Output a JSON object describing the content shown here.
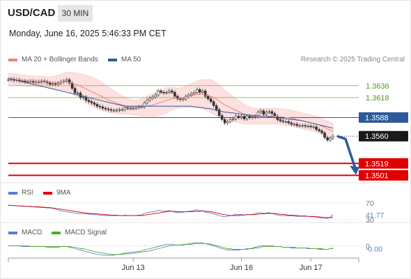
{
  "header": {
    "symbol": "USD/CAD",
    "timeframe": "30 MIN",
    "datetime": "Monday, June 16, 2025 5:46:33 PM CET"
  },
  "legend": {
    "ma20_label": "MA 20 + Bollinger Bands",
    "ma50_label": "MA 50",
    "credit": "Research © 2025 Trading Central",
    "rsi_label": "RSI",
    "rsi_ma_label": "9MA",
    "macd_label": "MACD",
    "macd_signal_label": "MACD Signal"
  },
  "colors": {
    "ma20": "#f08080",
    "ma50": "#2c5a9a",
    "candle": "#333333",
    "band": "#fde0e0",
    "green_level": "#8fc65a",
    "red_level": "#e00000",
    "blue_level": "#2c5a9a",
    "arrow": "#2c5a9a",
    "rsi": "#5b7bd5",
    "rsi_ma": "#e00000",
    "macd": "#5b7bd5",
    "macd_signal": "#4caf20"
  },
  "chart_data": [
    {
      "type": "line",
      "panel": "price",
      "price_range": [
        1.3492,
        1.3662
      ],
      "levels": [
        {
          "label": "1.3636",
          "value": 1.3636,
          "style": "green"
        },
        {
          "label": "1.3618",
          "value": 1.3618,
          "style": "green"
        },
        {
          "label": "1.3588",
          "value": 1.3588,
          "style": "blue"
        },
        {
          "label": "1.3560",
          "value": 1.356,
          "style": "current"
        },
        {
          "label": "1.3519",
          "value": 1.3519,
          "style": "red"
        },
        {
          "label": "1.3501",
          "value": 1.3501,
          "style": "red"
        }
      ],
      "x_ticks": [
        "Jun 13",
        "Jun 16",
        "Jun 17"
      ],
      "x_tick_index": [
        45,
        84,
        109
      ],
      "n_bars": 118,
      "close": [
        1.3645,
        1.3646,
        1.3644,
        1.3645,
        1.3643,
        1.3643,
        1.3642,
        1.3642,
        1.3643,
        1.3641,
        1.3642,
        1.3641,
        1.3643,
        1.3642,
        1.364,
        1.3638,
        1.3639,
        1.3638,
        1.364,
        1.3642,
        1.3643,
        1.3645,
        1.364,
        1.3632,
        1.3625,
        1.3625,
        1.3618,
        1.3619,
        1.3614,
        1.3612,
        1.361,
        1.3608,
        1.3605,
        1.3604,
        1.3602,
        1.3601,
        1.36,
        1.3599,
        1.3599,
        1.3599,
        1.36,
        1.36,
        1.3603,
        1.3602,
        1.3602,
        1.3602,
        1.3603,
        1.3604,
        1.3604,
        1.361,
        1.3614,
        1.3617,
        1.3619,
        1.3622,
        1.3628,
        1.3626,
        1.3625,
        1.3626,
        1.3628,
        1.3626,
        1.362,
        1.3616,
        1.3615,
        1.3616,
        1.362,
        1.3622,
        1.3624,
        1.3626,
        1.363,
        1.3626,
        1.3628,
        1.362,
        1.3616,
        1.3612,
        1.3606,
        1.36,
        1.3591,
        1.3585,
        1.358,
        1.3582,
        1.3585,
        1.3586,
        1.359,
        1.3588,
        1.359,
        1.3586,
        1.359,
        1.3588,
        1.3589,
        1.359,
        1.3596,
        1.3598,
        1.3593,
        1.3596,
        1.3597,
        1.3594,
        1.359,
        1.3585,
        1.3583,
        1.3582,
        1.3582,
        1.358,
        1.3578,
        1.3578,
        1.3576,
        1.3576,
        1.3576,
        1.3575,
        1.3575,
        1.3574,
        1.3574,
        1.357,
        1.3568,
        1.3565,
        1.3558,
        1.3554,
        1.3557,
        1.356
      ],
      "ma20": [
        1.3646,
        1.3646,
        1.3646,
        1.3645,
        1.3645,
        1.3644,
        1.3644,
        1.3643,
        1.3643,
        1.3643,
        1.3642,
        1.3642,
        1.3642,
        1.3642,
        1.3641,
        1.3641,
        1.3641,
        1.3641,
        1.3641,
        1.3642,
        1.3642,
        1.3642,
        1.3641,
        1.364,
        1.3638,
        1.3637,
        1.3635,
        1.3633,
        1.3631,
        1.3629,
        1.3627,
        1.3625,
        1.3623,
        1.3621,
        1.3619,
        1.3617,
        1.3615,
        1.3613,
        1.3612,
        1.361,
        1.3608,
        1.3607,
        1.3606,
        1.3605,
        1.3604,
        1.3603,
        1.3603,
        1.3603,
        1.3603,
        1.3604,
        1.3605,
        1.3606,
        1.3607,
        1.3608,
        1.361,
        1.3611,
        1.3612,
        1.3614,
        1.3615,
        1.3616,
        1.3617,
        1.3617,
        1.3618,
        1.3618,
        1.3619,
        1.362,
        1.3621,
        1.3622,
        1.3623,
        1.3623,
        1.3623,
        1.3622,
        1.3621,
        1.362,
        1.3618,
        1.3616,
        1.3613,
        1.361,
        1.3607,
        1.3605,
        1.3603,
        1.3601,
        1.3599,
        1.3597,
        1.3595,
        1.3593,
        1.3592,
        1.3591,
        1.359,
        1.359,
        1.359,
        1.359,
        1.359,
        1.359,
        1.359,
        1.359,
        1.359,
        1.359,
        1.3589,
        1.3589,
        1.3588,
        1.3588,
        1.3587,
        1.3586,
        1.3585,
        1.3584,
        1.3583,
        1.3582,
        1.3581,
        1.358,
        1.3579,
        1.3578,
        1.3577,
        1.3575,
        1.3573,
        1.3571,
        1.3569,
        1.3567
      ],
      "bb_width": [
        0.0008,
        0.0008,
        0.0008,
        0.0008,
        0.0008,
        0.0008,
        0.0008,
        0.0008,
        0.0008,
        0.0008,
        0.0008,
        0.0008,
        0.0008,
        0.0008,
        0.0008,
        0.0008,
        0.0009,
        0.001,
        0.0011,
        0.0012,
        0.0013,
        0.0014,
        0.0015,
        0.0016,
        0.0017,
        0.0018,
        0.0019,
        0.002,
        0.0021,
        0.0022,
        0.0022,
        0.0022,
        0.0022,
        0.0022,
        0.0021,
        0.002,
        0.0019,
        0.0018,
        0.0017,
        0.0016,
        0.0015,
        0.0014,
        0.0013,
        0.0012,
        0.0011,
        0.0011,
        0.0011,
        0.0012,
        0.0013,
        0.0014,
        0.0015,
        0.0016,
        0.0017,
        0.0018,
        0.0019,
        0.0019,
        0.0019,
        0.0019,
        0.0018,
        0.0017,
        0.0016,
        0.0015,
        0.0015,
        0.0015,
        0.0016,
        0.0017,
        0.0018,
        0.0019,
        0.002,
        0.0021,
        0.0022,
        0.0023,
        0.0024,
        0.0025,
        0.0025,
        0.0025,
        0.0024,
        0.0023,
        0.0022,
        0.0021,
        0.002,
        0.0019,
        0.0018,
        0.0017,
        0.0016,
        0.0015,
        0.0014,
        0.0013,
        0.0012,
        0.0012,
        0.0012,
        0.0012,
        0.0012,
        0.0012,
        0.0012,
        0.0012,
        0.0012,
        0.0012,
        0.0012,
        0.0012,
        0.0012,
        0.0012,
        0.0012,
        0.0012,
        0.0012,
        0.0012,
        0.0012,
        0.0012,
        0.0012,
        0.0012,
        0.0012,
        0.0012,
        0.0012,
        0.0012,
        0.0012,
        0.0012,
        0.0012,
        0.0012
      ],
      "ma50": [
        1.3647,
        1.3646,
        1.3645,
        1.3644,
        1.3643,
        1.3642,
        1.3641,
        1.364,
        1.3639,
        1.3638,
        1.3637,
        1.3636,
        1.3635,
        1.3634,
        1.3633,
        1.3632,
        1.3631,
        1.363,
        1.3629,
        1.3628,
        1.3627,
        1.3626,
        1.3625,
        1.3624,
        1.3623,
        1.3622,
        1.3621,
        1.362,
        1.3619,
        1.3618,
        1.3617,
        1.3616,
        1.3615,
        1.3614,
        1.3613,
        1.3612,
        1.3611,
        1.361,
        1.3609,
        1.3608,
        1.3607,
        1.3606,
        1.3605,
        1.3605,
        1.3605,
        1.3605,
        1.3605,
        1.3605,
        1.3605,
        1.3605,
        1.3605,
        1.3605,
        1.3605,
        1.3605,
        1.3605,
        1.3605,
        1.3605,
        1.3605,
        1.3605,
        1.3605,
        1.3605,
        1.3605,
        1.3605,
        1.3605,
        1.3605,
        1.3605,
        1.3605,
        1.3604,
        1.3604,
        1.3603,
        1.3603,
        1.3602,
        1.3602,
        1.3601,
        1.36,
        1.3599,
        1.3598,
        1.3597,
        1.3596,
        1.3596,
        1.3595,
        1.3595,
        1.3594,
        1.3594,
        1.3593,
        1.3593,
        1.3592,
        1.3592,
        1.3591,
        1.3591,
        1.3591,
        1.359,
        1.359,
        1.359,
        1.3589,
        1.3589,
        1.3588,
        1.3588,
        1.3587,
        1.3587,
        1.3586,
        1.3586,
        1.3585,
        1.3585,
        1.3584,
        1.3584,
        1.3583,
        1.3582,
        1.3581,
        1.358,
        1.3579,
        1.3578,
        1.3577,
        1.3576,
        1.3575,
        1.3574,
        1.3573,
        1.3572
      ],
      "forecast": {
        "from": 1.356,
        "to": 1.3505
      }
    },
    {
      "type": "line",
      "panel": "rsi",
      "levels": [
        {
          "label": "70",
          "value": 70
        },
        {
          "label": "41.77",
          "value": 41.77
        },
        {
          "label": "30",
          "value": 30
        }
      ],
      "range": [
        25,
        75
      ],
      "rsi": [
        65,
        64,
        64,
        63,
        63,
        62,
        62,
        62,
        61,
        61,
        60,
        60,
        59,
        59,
        58,
        58,
        57,
        55,
        53,
        51,
        50,
        49,
        48,
        47,
        46,
        45,
        45,
        44,
        44,
        43,
        43,
        42,
        42,
        41,
        41,
        40,
        40,
        40,
        40,
        40,
        40,
        40,
        41,
        40,
        40,
        40,
        40,
        41,
        41,
        45,
        47,
        48,
        49,
        50,
        53,
        51,
        50,
        51,
        52,
        50,
        48,
        47,
        47,
        48,
        49,
        50,
        51,
        52,
        54,
        51,
        52,
        48,
        47,
        46,
        44,
        42,
        40,
        38,
        37,
        38,
        40,
        41,
        43,
        42,
        43,
        41,
        43,
        42,
        43,
        44,
        46,
        47,
        45,
        46,
        47,
        45,
        43,
        41,
        40,
        40,
        40,
        39,
        39,
        39,
        38,
        38,
        38,
        38,
        38,
        37,
        37,
        36,
        35,
        34,
        33,
        33,
        36,
        41.77
      ],
      "rsi_ma": [
        64,
        64,
        64,
        63,
        63,
        63,
        62,
        62,
        62,
        61,
        61,
        61,
        60,
        60,
        59,
        59,
        58,
        57,
        56,
        55,
        54,
        53,
        52,
        51,
        50,
        49,
        48,
        47,
        46,
        45,
        45,
        44,
        44,
        43,
        43,
        42,
        42,
        41,
        41,
        41,
        40,
        40,
        40,
        40,
        40,
        40,
        40,
        40,
        40,
        41,
        42,
        43,
        44,
        45,
        46,
        47,
        48,
        49,
        50,
        50,
        50,
        49,
        49,
        49,
        49,
        49,
        49,
        50,
        50,
        50,
        51,
        50,
        50,
        49,
        48,
        46,
        45,
        43,
        42,
        41,
        40,
        40,
        40,
        40,
        41,
        41,
        42,
        42,
        42,
        43,
        43,
        44,
        44,
        45,
        45,
        45,
        45,
        44,
        43,
        43,
        42,
        41,
        41,
        40,
        40,
        39,
        39,
        39,
        38,
        38,
        38,
        37,
        37,
        36,
        36,
        35,
        35,
        36
      ]
    },
    {
      "type": "line",
      "panel": "macd",
      "levels": [
        {
          "label": "0",
          "value": 0
        },
        {
          "label": "-0.00",
          "value": -0.0003
        }
      ],
      "range": [
        -0.0016,
        0.0008
      ],
      "macd": [
        0.0,
        0.0,
        0.0,
        0.0,
        0.0,
        -0.0001,
        -0.0001,
        -0.0001,
        -0.0001,
        -0.0001,
        -0.0001,
        -0.0001,
        -0.0001,
        -0.0001,
        -0.0002,
        -0.0002,
        -0.0002,
        -0.0002,
        -0.0002,
        -0.0001,
        -0.0001,
        -0.0001,
        -0.0002,
        -0.0003,
        -0.0004,
        -0.0005,
        -0.0006,
        -0.0007,
        -0.0008,
        -0.0009,
        -0.001,
        -0.0011,
        -0.0012,
        -0.0012,
        -0.0013,
        -0.0013,
        -0.0013,
        -0.0013,
        -0.0013,
        -0.0012,
        -0.0012,
        -0.0011,
        -0.001,
        -0.001,
        -0.0009,
        -0.0009,
        -0.0008,
        -0.0008,
        -0.0007,
        -0.0006,
        -0.0005,
        -0.0004,
        -0.0003,
        -0.0002,
        -0.0001,
        0.0,
        0.0001,
        0.0002,
        0.0002,
        0.0002,
        0.0001,
        0.0001,
        0.0001,
        0.0002,
        0.0002,
        0.0003,
        0.0003,
        0.0004,
        0.0004,
        0.0004,
        0.0004,
        0.0003,
        0.0002,
        0.0001,
        0.0,
        -0.0001,
        -0.0003,
        -0.0004,
        -0.0005,
        -0.0006,
        -0.0006,
        -0.0006,
        -0.0006,
        -0.0006,
        -0.0005,
        -0.0005,
        -0.0004,
        -0.0004,
        -0.0003,
        -0.0002,
        -0.0001,
        0.0,
        0.0,
        0.0,
        0.0,
        0.0,
        -0.0001,
        -0.0001,
        -0.0001,
        -0.0002,
        -0.0002,
        -0.0002,
        -0.0003,
        -0.0003,
        -0.0003,
        -0.0003,
        -0.0003,
        -0.0003,
        -0.0004,
        -0.0004,
        -0.0004,
        -0.0004,
        -0.0005,
        -0.0005,
        -0.0005,
        -0.0005,
        -0.0004,
        -0.0003
      ],
      "signal": [
        0.0,
        0.0,
        0.0,
        0.0,
        0.0,
        0.0,
        0.0,
        0.0,
        -0.0001,
        -0.0001,
        -0.0001,
        -0.0001,
        -0.0001,
        -0.0001,
        -0.0001,
        -0.0001,
        -0.0001,
        -0.0001,
        -0.0001,
        -0.0001,
        -0.0001,
        -0.0001,
        -0.0001,
        -0.0002,
        -0.0002,
        -0.0003,
        -0.0004,
        -0.0004,
        -0.0005,
        -0.0006,
        -0.0007,
        -0.0008,
        -0.0009,
        -0.0009,
        -0.001,
        -0.0011,
        -0.0011,
        -0.0012,
        -0.0012,
        -0.0012,
        -0.0012,
        -0.0012,
        -0.0011,
        -0.0011,
        -0.0011,
        -0.001,
        -0.001,
        -0.0009,
        -0.0009,
        -0.0008,
        -0.0008,
        -0.0007,
        -0.0006,
        -0.0005,
        -0.0004,
        -0.0003,
        -0.0002,
        -0.0001,
        0.0,
        0.0,
        0.0001,
        0.0001,
        0.0001,
        0.0001,
        0.0002,
        0.0002,
        0.0002,
        0.0003,
        0.0003,
        0.0003,
        0.0003,
        0.0003,
        0.0003,
        0.0002,
        0.0001,
        0.0,
        -0.0001,
        -0.0002,
        -0.0003,
        -0.0004,
        -0.0004,
        -0.0005,
        -0.0005,
        -0.0005,
        -0.0005,
        -0.0005,
        -0.0005,
        -0.0004,
        -0.0004,
        -0.0003,
        -0.0003,
        -0.0002,
        -0.0001,
        -0.0001,
        -0.0001,
        -0.0001,
        -0.0001,
        -0.0001,
        -0.0001,
        -0.0002,
        -0.0002,
        -0.0002,
        -0.0002,
        -0.0002,
        -0.0003,
        -0.0003,
        -0.0003,
        -0.0003,
        -0.0003,
        -0.0004,
        -0.0004,
        -0.0004,
        -0.0004,
        -0.0004,
        -0.0005,
        -0.0005,
        -0.0004,
        -0.0004
      ]
    }
  ]
}
